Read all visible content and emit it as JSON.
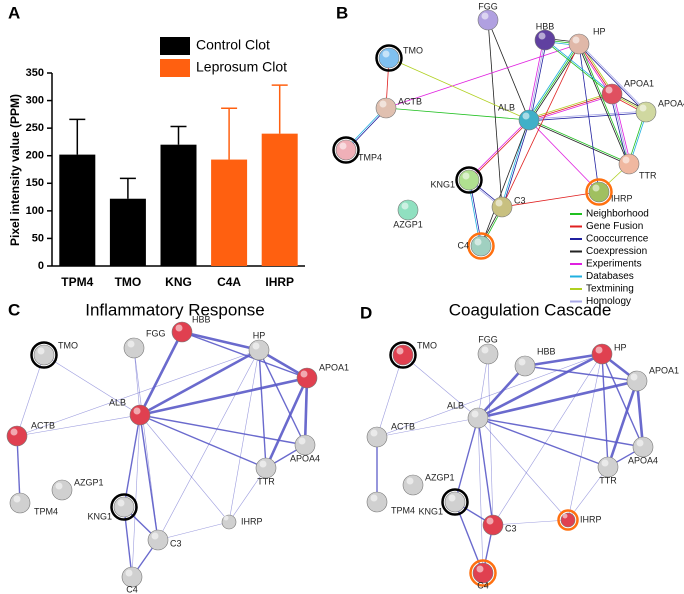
{
  "chart_data": {
    "type": "bar",
    "panel": "A",
    "categories": [
      "TPM4",
      "TMO",
      "KNG",
      "C4A",
      "IHRP"
    ],
    "series": [
      {
        "name": "Control Clot",
        "color": "#000000",
        "values": [
          202,
          122,
          220,
          null,
          null
        ],
        "errors": [
          64,
          37,
          33,
          null,
          null
        ]
      },
      {
        "name": "Leprosum Clot",
        "color": "#ff6010",
        "values": [
          null,
          null,
          null,
          193,
          240
        ],
        "errors": [
          null,
          null,
          null,
          93,
          88
        ]
      }
    ],
    "ylabel": "Pixel intensity value (PPM)",
    "ylim": [
      0,
      350
    ],
    "yticks": [
      0,
      50,
      100,
      150,
      200,
      250,
      300,
      350
    ]
  },
  "networks": [
    {
      "panel": "B",
      "nodes": [
        {
          "label": "FGG",
          "color": "#b0a0e0"
        },
        {
          "label": "HBB",
          "color": "#6040a0"
        },
        {
          "label": "HP",
          "color": "#e0b8a8"
        },
        {
          "label": "TMO",
          "color": "#80c0f0",
          "ring": "#000000"
        },
        {
          "label": "APOA1",
          "color": "#e05060"
        },
        {
          "label": "ACTB",
          "color": "#e0c0b0"
        },
        {
          "label": "ALB",
          "color": "#40b0c8"
        },
        {
          "label": "APOA4",
          "color": "#d0d8a0"
        },
        {
          "label": "TMP4",
          "color": "#f0b0b8",
          "ring": "#000000"
        },
        {
          "label": "TTR",
          "color": "#f0b8a0"
        },
        {
          "label": "KNG1",
          "color": "#b0e090",
          "ring": "#000000"
        },
        {
          "label": "C3",
          "color": "#c8c080"
        },
        {
          "label": "IHRP",
          "color": "#a0c060",
          "ring": "#ff7010"
        },
        {
          "label": "AZGP1",
          "color": "#90e0c0"
        },
        {
          "label": "C4",
          "color": "#a0d0c0",
          "ring": "#ff7010"
        }
      ],
      "legend": [
        {
          "name": "Neighborhood",
          "color": "#20c020"
        },
        {
          "name": "Gene Fusion",
          "color": "#e02020"
        },
        {
          "name": "Cooccurrence",
          "color": "#2020a0"
        },
        {
          "name": "Coexpression",
          "color": "#222222"
        },
        {
          "name": "Experiments",
          "color": "#e020e0"
        },
        {
          "name": "Databases",
          "color": "#20b0e0"
        },
        {
          "name": "Textmining",
          "color": "#b0d020"
        },
        {
          "name": "Homology",
          "color": "#a8a8e8"
        }
      ]
    },
    {
      "panel": "C",
      "title": "Inflammatory Response",
      "nodes": [
        {
          "label": "FGG",
          "color": "#d0d0d0"
        },
        {
          "label": "HBB",
          "color": "#e04050"
        },
        {
          "label": "HP",
          "color": "#d0d0d0"
        },
        {
          "label": "TMO",
          "color": "#d0d0d0",
          "ring": "#000000"
        },
        {
          "label": "APOA1",
          "color": "#e04050"
        },
        {
          "label": "ACTB",
          "color": "#e04050"
        },
        {
          "label": "ALB",
          "color": "#e04050"
        },
        {
          "label": "APOA4",
          "color": "#d0d0d0"
        },
        {
          "label": "TPM4",
          "color": "#d0d0d0"
        },
        {
          "label": "TTR",
          "color": "#d0d0d0"
        },
        {
          "label": "KNG1",
          "color": "#d0d0d0",
          "ring": "#000000"
        },
        {
          "label": "C3",
          "color": "#d0d0d0"
        },
        {
          "label": "IHRP",
          "color": "#d0d0d0"
        },
        {
          "label": "AZGP1",
          "color": "#d0d0d0"
        },
        {
          "label": "C4",
          "color": "#d0d0d0"
        }
      ]
    },
    {
      "panel": "D",
      "title": "Coagulation Cascade",
      "nodes": [
        {
          "label": "FGG",
          "color": "#d0d0d0"
        },
        {
          "label": "HBB",
          "color": "#d0d0d0"
        },
        {
          "label": "HP",
          "color": "#e04050"
        },
        {
          "label": "TMO",
          "color": "#e04050",
          "ring": "#000000"
        },
        {
          "label": "APOA1",
          "color": "#d0d0d0"
        },
        {
          "label": "ACTB",
          "color": "#d0d0d0"
        },
        {
          "label": "ALB",
          "color": "#d0d0d0"
        },
        {
          "label": "APOA4",
          "color": "#d0d0d0"
        },
        {
          "label": "TPM4",
          "color": "#d0d0d0"
        },
        {
          "label": "TTR",
          "color": "#d0d0d0"
        },
        {
          "label": "KNG1",
          "color": "#d0d0d0",
          "ring": "#000000"
        },
        {
          "label": "C3",
          "color": "#e04050"
        },
        {
          "label": "IHRP",
          "color": "#e04050",
          "ring": "#ff7010"
        },
        {
          "label": "AZGP1",
          "color": "#d0d0d0"
        },
        {
          "label": "C4",
          "color": "#e04050",
          "ring": "#ff7010"
        }
      ]
    }
  ]
}
